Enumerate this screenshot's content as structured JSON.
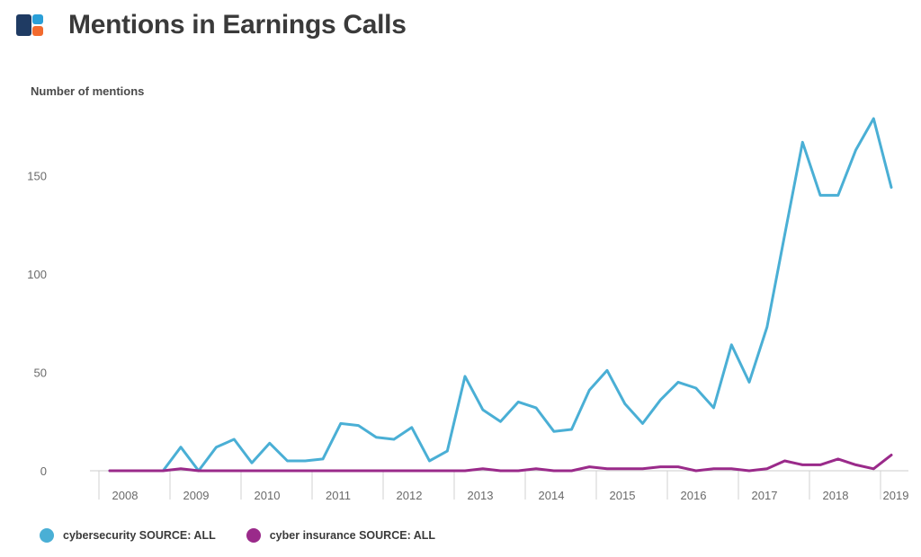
{
  "header": {
    "title": "Mentions in Earnings Calls",
    "logo_icon": "logo-icon"
  },
  "chart_data": {
    "type": "line",
    "title": "Mentions in Earnings Calls",
    "ylabel": "Number of mentions",
    "xlabel": "",
    "ylim": [
      0,
      190
    ],
    "yticks": [
      0,
      50,
      100,
      150
    ],
    "xticks": [
      "2008",
      "2009",
      "2010",
      "2011",
      "2012",
      "2013",
      "2014",
      "2015",
      "2016",
      "2017",
      "2018",
      "2019"
    ],
    "x_start_year": 2008,
    "quarters_per_year": 4,
    "grid": false,
    "legend_position": "bottom-left",
    "series": [
      {
        "name": "cybersecurity SOURCE: ALL",
        "color": "#4aafd5",
        "values": [
          0,
          0,
          0,
          0,
          12,
          0,
          12,
          16,
          4,
          14,
          5,
          5,
          6,
          24,
          23,
          17,
          16,
          22,
          5,
          10,
          48,
          31,
          25,
          35,
          32,
          20,
          21,
          41,
          51,
          34,
          24,
          36,
          45,
          42,
          32,
          64,
          45,
          73,
          120,
          167,
          140,
          140,
          163,
          179,
          144
        ]
      },
      {
        "name": "cyber insurance SOURCE: ALL",
        "color": "#9a2a8a",
        "values": [
          0,
          0,
          0,
          0,
          1,
          0,
          0,
          0,
          0,
          0,
          0,
          0,
          0,
          0,
          0,
          0,
          0,
          0,
          0,
          0,
          0,
          1,
          0,
          0,
          1,
          0,
          0,
          2,
          1,
          1,
          1,
          2,
          2,
          0,
          1,
          1,
          0,
          1,
          5,
          3,
          3,
          6,
          3,
          1,
          8
        ]
      }
    ]
  },
  "legend": {
    "items": [
      {
        "label": "cybersecurity SOURCE: ALL",
        "color": "#4aafd5"
      },
      {
        "label": "cyber insurance SOURCE: ALL",
        "color": "#9a2a8a"
      }
    ]
  }
}
